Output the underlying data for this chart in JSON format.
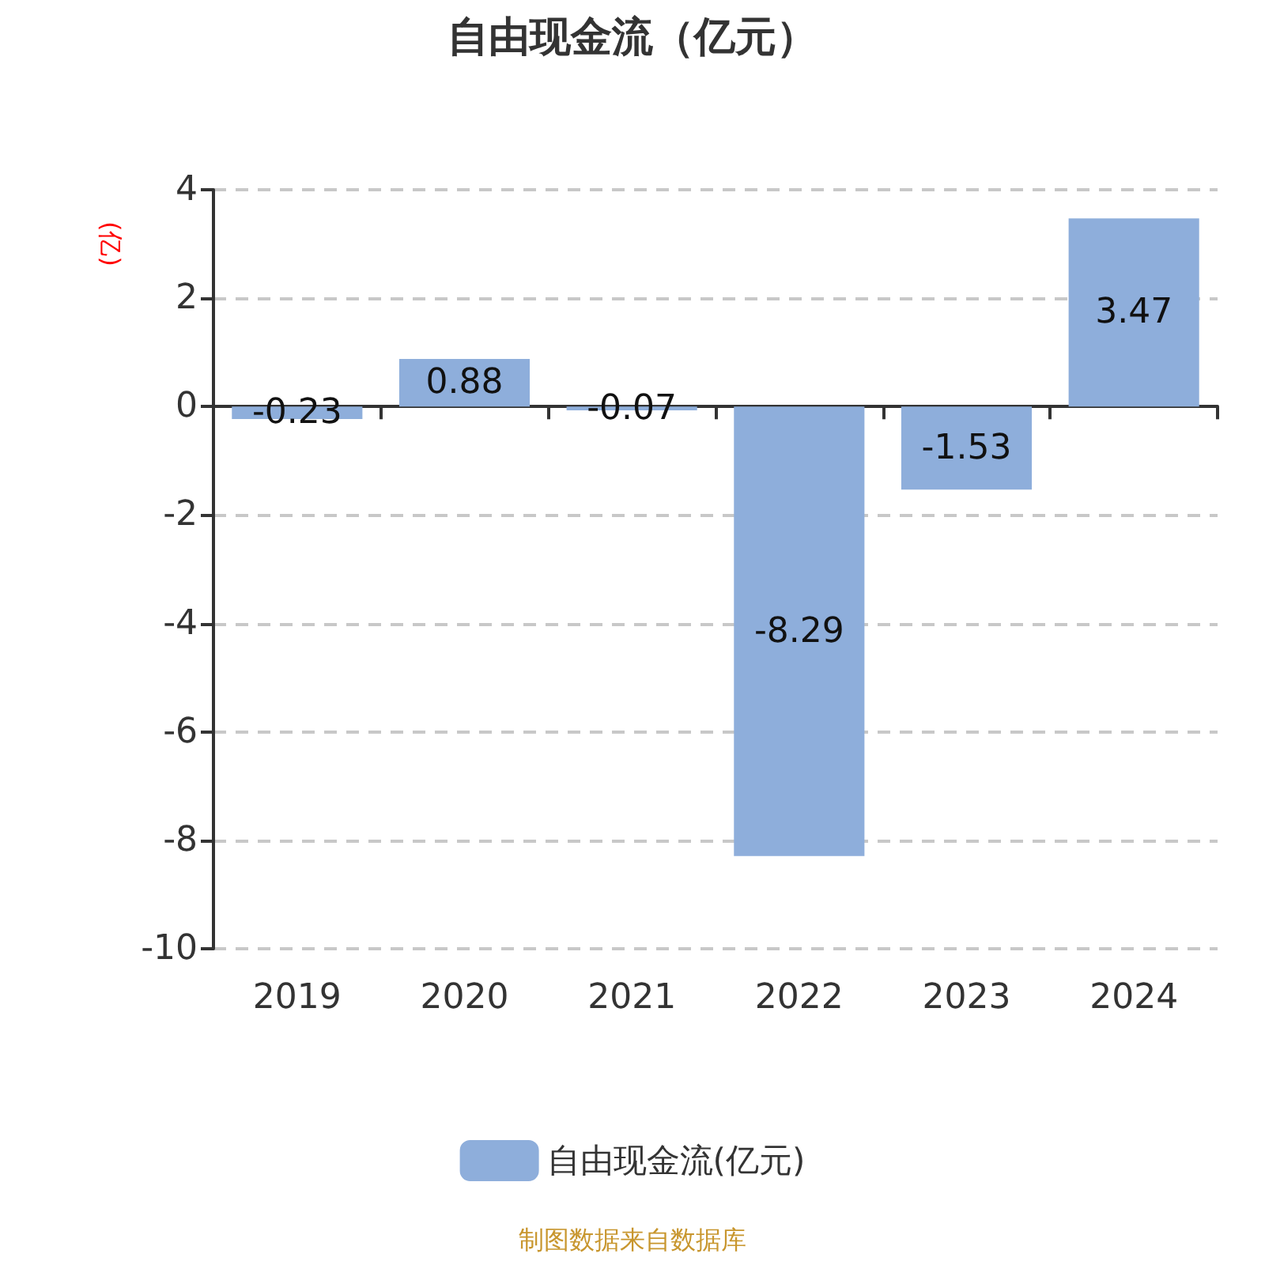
{
  "chart_data": {
    "type": "bar",
    "title": "自由现金流（亿元）",
    "ylabel": "(亿)",
    "categories": [
      "2019",
      "2020",
      "2021",
      "2022",
      "2023",
      "2024"
    ],
    "series": [
      {
        "name": "自由现金流(亿元)",
        "color": "#8eaedb",
        "values": [
          -0.23,
          0.88,
          -0.07,
          -8.29,
          -1.53,
          3.47
        ]
      }
    ],
    "ylim": [
      -10,
      4
    ],
    "yticks": [
      -10,
      -8,
      -6,
      -4,
      -2,
      0,
      2,
      4
    ],
    "grid": "y",
    "legend": "bottom",
    "data_labels": true,
    "annotations": [
      "制图数据来自数据库"
    ]
  }
}
